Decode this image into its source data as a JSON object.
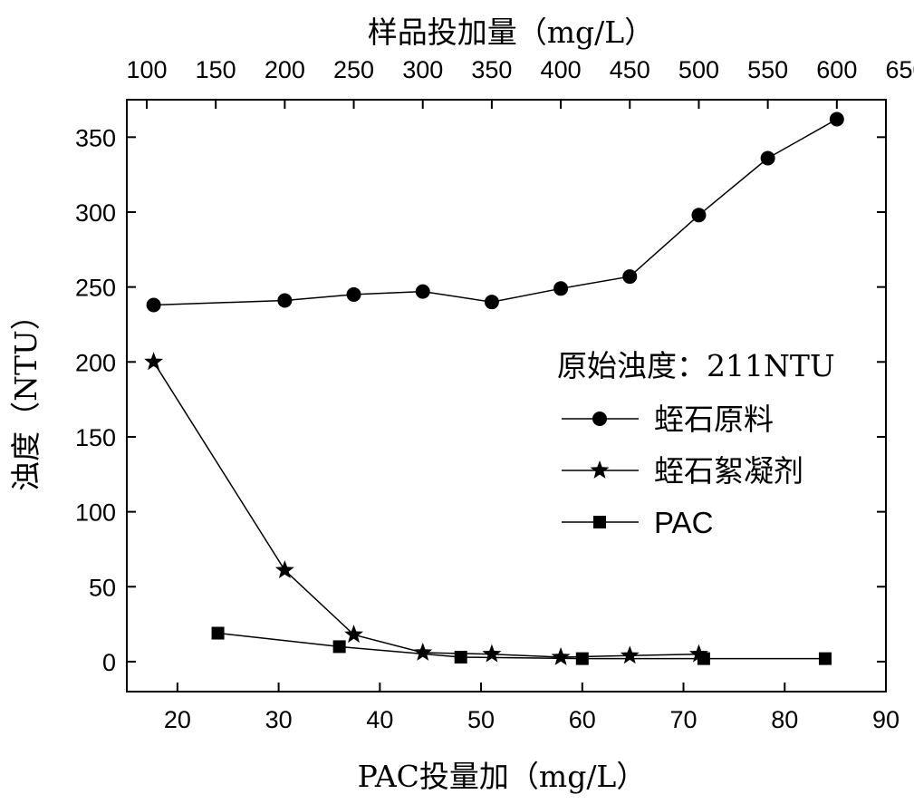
{
  "chart_data": {
    "type": "line",
    "xlabel": "PAC投量加（mg/L）",
    "x2label": "样品投加量（mg/L）",
    "ylabel": "浊度（NTU）",
    "xlim": [
      15,
      90
    ],
    "x2lim": [
      100,
      650
    ],
    "ylim": [
      -20,
      375
    ],
    "x_ticks": [
      20,
      30,
      40,
      50,
      60,
      70,
      80,
      90
    ],
    "x2_ticks": [
      100,
      150,
      200,
      250,
      300,
      350,
      400,
      450,
      500,
      550,
      600,
      650
    ],
    "y_ticks": [
      0,
      50,
      100,
      150,
      200,
      250,
      300,
      350
    ],
    "grid": false,
    "legend_title": "原始浊度：211NTU",
    "legend_position": "right",
    "series": [
      {
        "name": "蛭石原料",
        "axis": "top",
        "marker": "circle",
        "x": [
          105,
          200,
          250,
          300,
          350,
          400,
          450,
          500,
          550,
          600
        ],
        "y": [
          238,
          241,
          245,
          247,
          240,
          249,
          257,
          298,
          336,
          362
        ]
      },
      {
        "name": "蛭石絮凝剂",
        "axis": "top",
        "marker": "star",
        "x": [
          105,
          200,
          250,
          300,
          350,
          400,
          450,
          500
        ],
        "y": [
          200,
          61,
          18,
          6,
          5,
          3,
          4,
          5
        ]
      },
      {
        "name": "PAC",
        "axis": "bottom",
        "marker": "square",
        "x": [
          24,
          36,
          48,
          60,
          72,
          84
        ],
        "y": [
          19,
          10,
          3,
          2,
          2,
          2
        ]
      }
    ]
  }
}
